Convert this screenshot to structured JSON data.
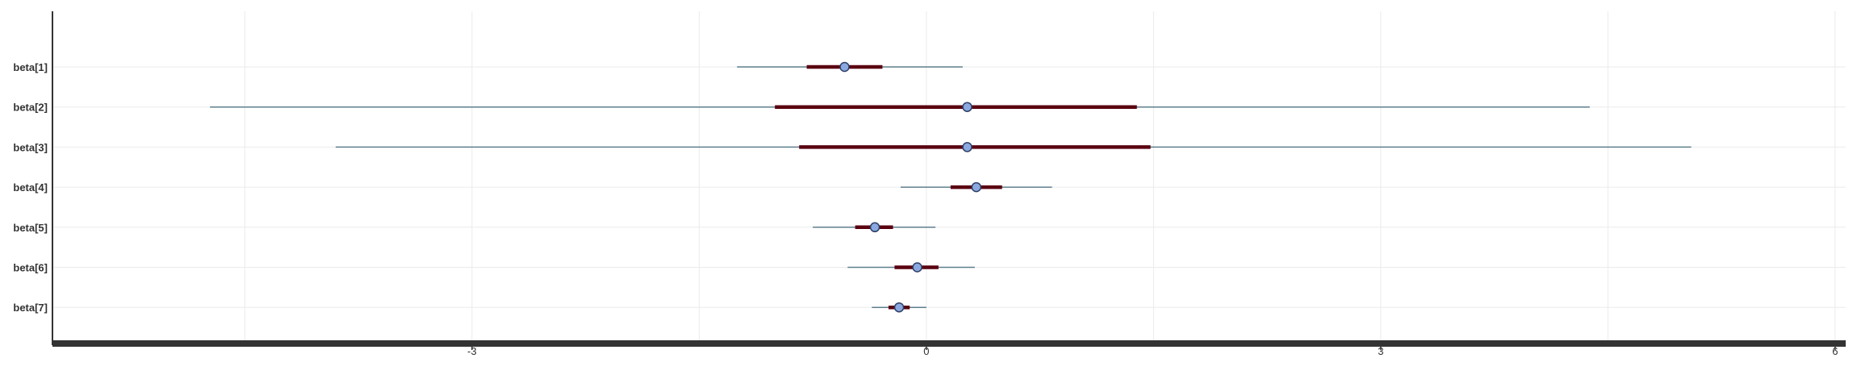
{
  "chart_data": {
    "type": "interval",
    "parameters": [
      "beta[1]",
      "beta[2]",
      "beta[3]",
      "beta[4]",
      "beta[5]",
      "beta[6]",
      "beta[7]"
    ],
    "median": [
      -0.54,
      0.27,
      0.27,
      0.33,
      -0.34,
      -0.06,
      -0.18
    ],
    "inner_interval": [
      [
        -0.79,
        -0.29
      ],
      [
        -1.0,
        1.39
      ],
      [
        -0.84,
        1.48
      ],
      [
        0.16,
        0.5
      ],
      [
        -0.47,
        -0.22
      ],
      [
        -0.21,
        0.08
      ],
      [
        -0.25,
        -0.11
      ]
    ],
    "outer_interval": [
      [
        -1.25,
        0.24
      ],
      [
        -4.73,
        4.38
      ],
      [
        -3.9,
        5.05
      ],
      [
        -0.17,
        0.83
      ],
      [
        -0.75,
        0.06
      ],
      [
        -0.52,
        0.32
      ],
      [
        -0.36,
        0.0
      ]
    ],
    "x_ticks": [
      -3,
      0,
      3,
      6
    ],
    "x_tick_labels": [
      "-3",
      "0",
      "3",
      "6"
    ],
    "xlim": [
      -5.77,
      6.07
    ],
    "grid": true,
    "colors": {
      "inner_interval": "#5a0010",
      "outer_interval": "#5e7f8c",
      "point_fill": "#89a9e0",
      "point_stroke": "#2f3f66",
      "axis": "#333333",
      "grid": "#ebebeb"
    }
  }
}
